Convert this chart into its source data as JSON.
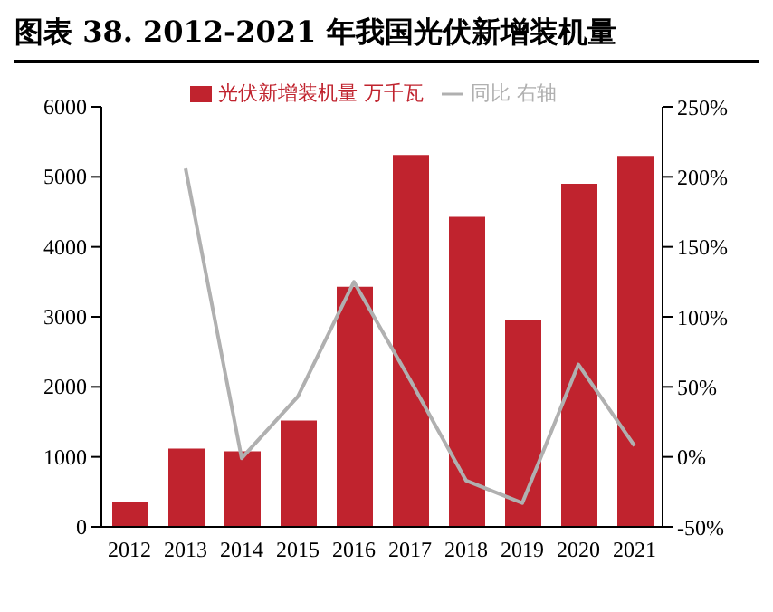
{
  "chart_data": {
    "type": "bar",
    "title": "图表 38. 2012-2021 年我国光伏新增装机量",
    "categories": [
      "2012",
      "2013",
      "2014",
      "2015",
      "2016",
      "2017",
      "2018",
      "2019",
      "2020",
      "2021"
    ],
    "series": [
      {
        "name": "光伏新增装机量 万千瓦",
        "color": "#c0232e",
        "values": [
          360,
          1120,
          1080,
          1520,
          3430,
          5310,
          4430,
          2960,
          4900,
          5300
        ]
      },
      {
        "name": "同比 右轴",
        "type": "line",
        "axis": "y2",
        "color": "#b0b0b0",
        "marker": "none",
        "values": [
          null,
          206,
          -1,
          43,
          125,
          55,
          -17,
          -33,
          66,
          8
        ]
      }
    ],
    "ylim": [
      0,
      6000
    ],
    "yticks": [
      0,
      1000,
      2000,
      3000,
      4000,
      5000,
      6000
    ],
    "y2lim": [
      -50,
      250
    ],
    "y2ticks": [
      {
        "value": -50,
        "label": "-50%"
      },
      {
        "value": 0,
        "label": "0%"
      },
      {
        "value": 50,
        "label": "50%"
      },
      {
        "value": 100,
        "label": "100%"
      },
      {
        "value": 150,
        "label": "150%"
      },
      {
        "value": 200,
        "label": "200%"
      },
      {
        "value": 250,
        "label": "250%"
      }
    ],
    "grid": false,
    "legend": "top"
  }
}
